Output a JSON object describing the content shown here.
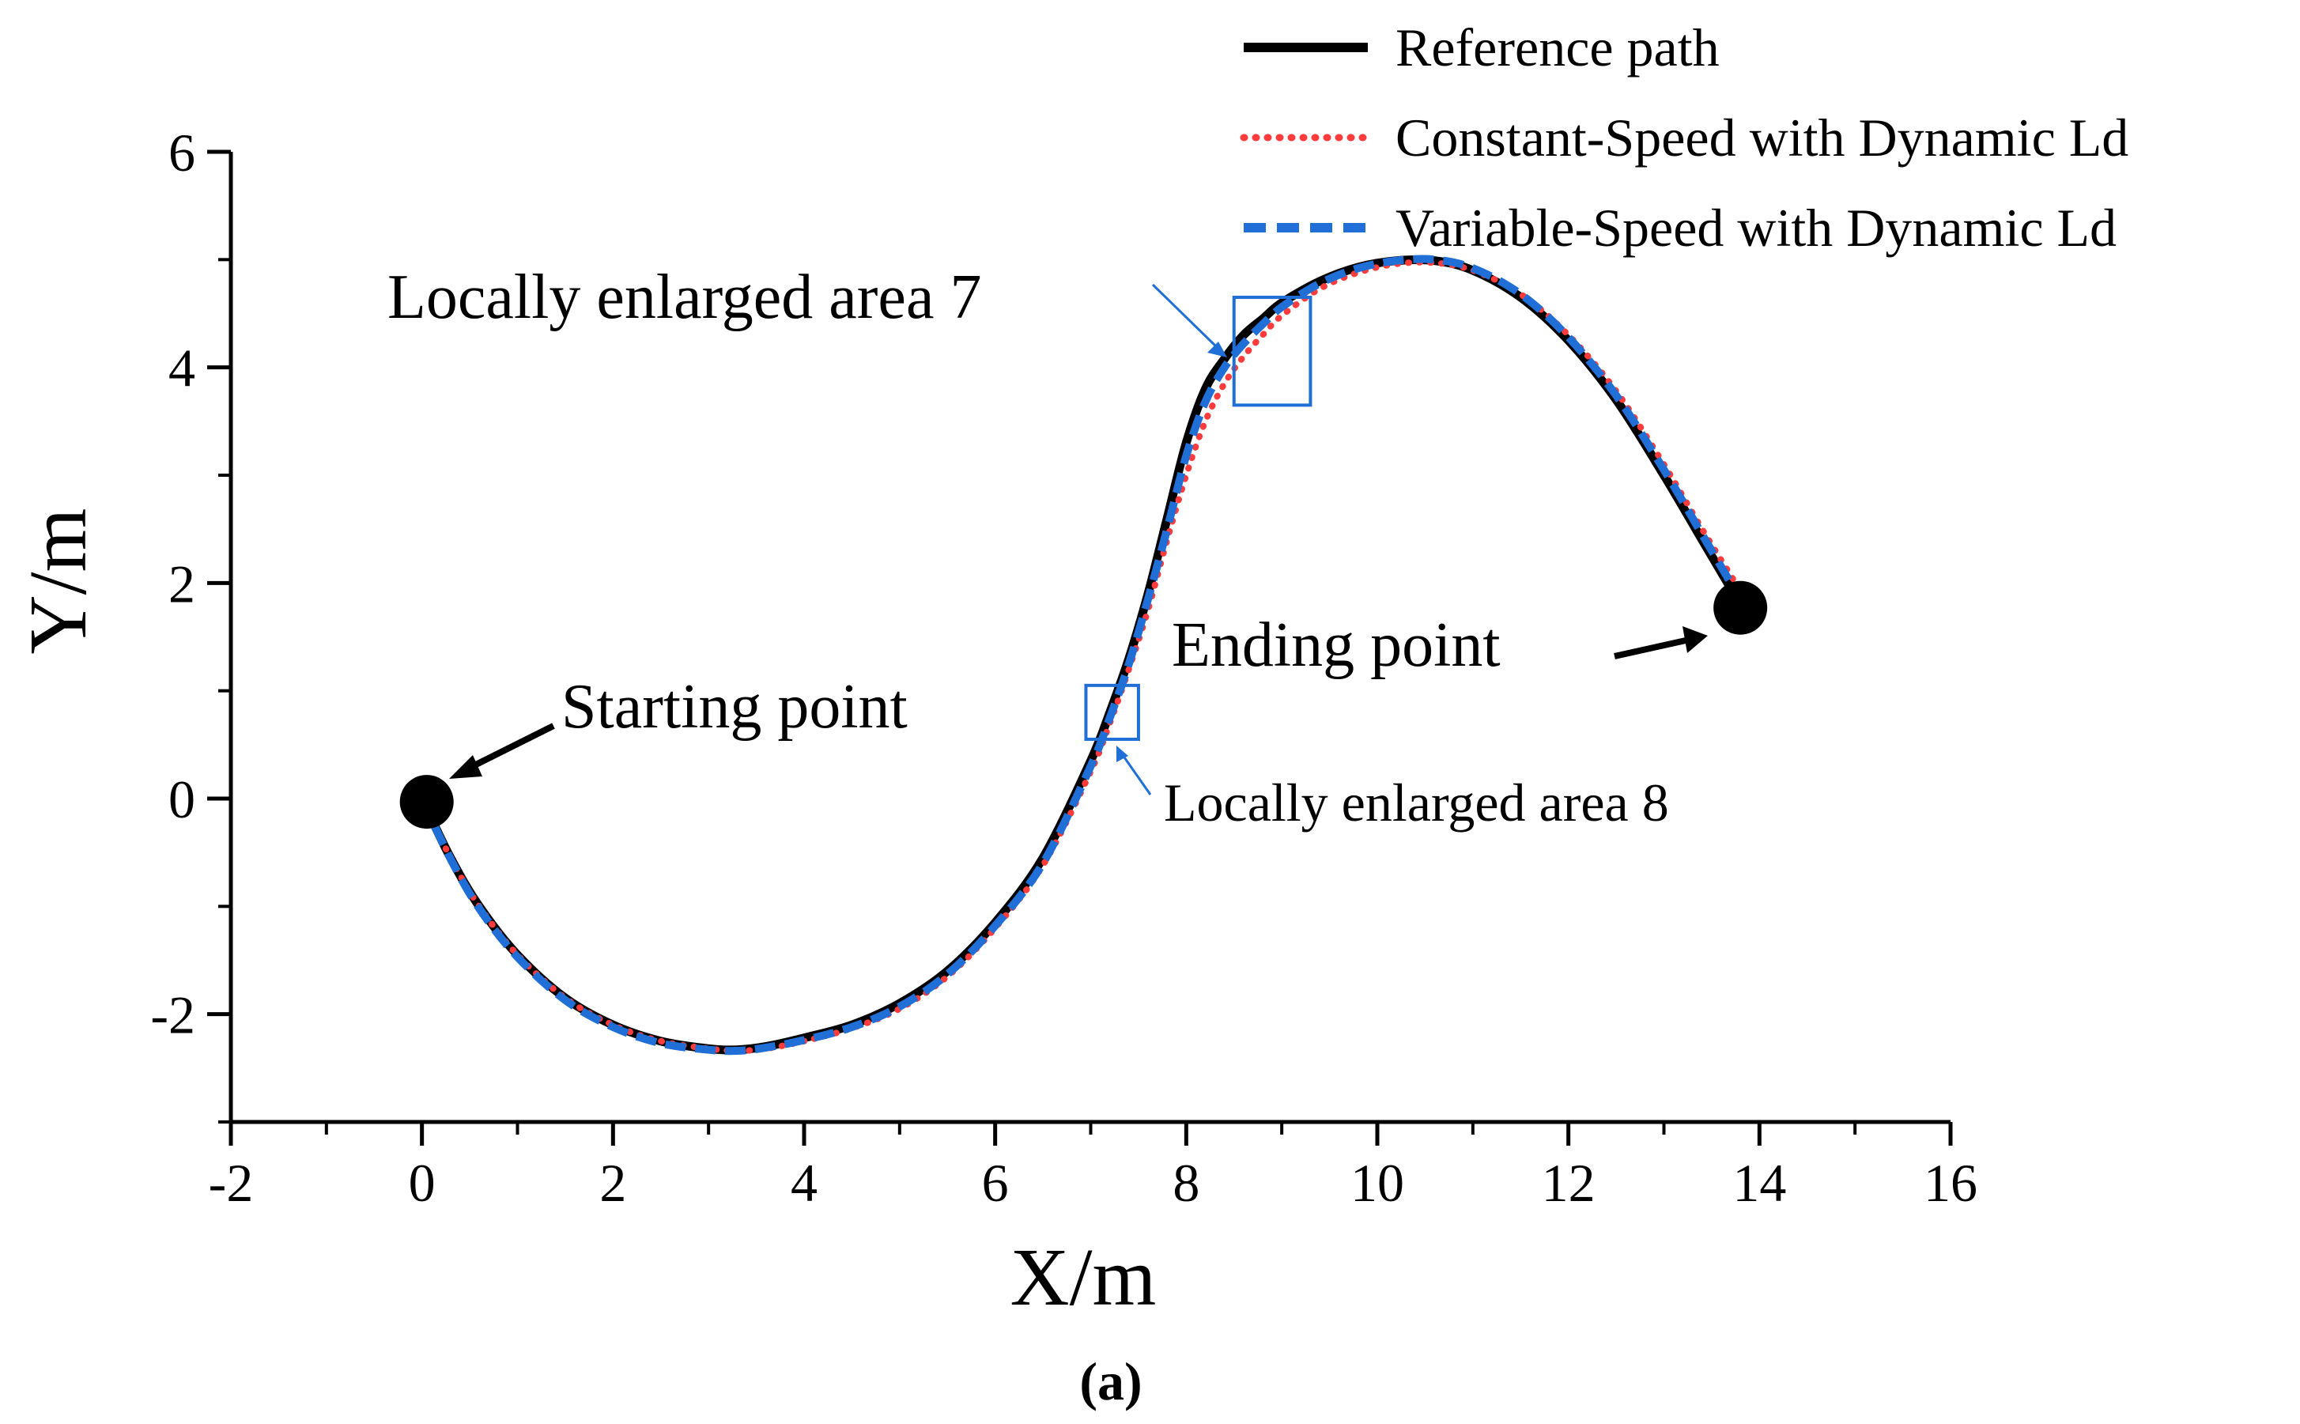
{
  "chart_data": {
    "type": "line",
    "xlabel": "X/m",
    "ylabel": "Y/m",
    "xlim": [
      -2,
      16
    ],
    "ylim": [
      -3,
      6
    ],
    "xticks": [
      -2,
      0,
      2,
      4,
      6,
      8,
      10,
      12,
      14,
      16
    ],
    "yticks": [
      -2,
      0,
      2,
      4,
      6
    ],
    "x_tick_labels": [
      "-2",
      "0",
      "2",
      "4",
      "6",
      "8",
      "10",
      "12",
      "14",
      "16"
    ],
    "y_tick_labels": [
      "-2",
      "0",
      "2",
      "4",
      "6"
    ],
    "grid": false,
    "legend_position": "top-right",
    "caption": "(a)",
    "colors": {
      "reference": "#000000",
      "constant": "#ff3b3b",
      "variable": "#1f6fd6",
      "box": "#1f6fd6",
      "marker": "#000000"
    },
    "series": [
      {
        "name": "Reference path",
        "style": "solid",
        "x": [
          0,
          0.3,
          0.6,
          1.0,
          1.5,
          2.0,
          2.5,
          3.0,
          3.3,
          3.6,
          4.0,
          4.5,
          5.0,
          5.5,
          6.0,
          6.5,
          7.0,
          7.2,
          7.4,
          7.6,
          7.8,
          8.0,
          8.2,
          8.4,
          8.6,
          8.8,
          9.0,
          9.4,
          9.8,
          10.2,
          10.6,
          11.0,
          11.5,
          12.0,
          12.5,
          13.0,
          13.4,
          13.8
        ],
        "y": [
          0,
          -0.55,
          -1.0,
          -1.45,
          -1.85,
          -2.1,
          -2.25,
          -2.32,
          -2.33,
          -2.3,
          -2.22,
          -2.1,
          -1.9,
          -1.6,
          -1.15,
          -0.55,
          0.35,
          0.8,
          1.3,
          1.9,
          2.6,
          3.3,
          3.8,
          4.08,
          4.3,
          4.45,
          4.6,
          4.8,
          4.93,
          4.99,
          4.99,
          4.9,
          4.65,
          4.25,
          3.7,
          3.0,
          2.4,
          1.8
        ]
      },
      {
        "name": "Constant-Speed with Dynamic Ld",
        "style": "dotted",
        "x": [
          0,
          0.3,
          0.6,
          1.0,
          1.5,
          2.0,
          2.5,
          3.0,
          3.3,
          3.6,
          4.0,
          4.5,
          5.0,
          5.5,
          6.0,
          6.5,
          7.0,
          7.2,
          7.4,
          7.6,
          7.8,
          8.0,
          8.2,
          8.4,
          8.6,
          8.8,
          9.0,
          9.4,
          9.8,
          10.2,
          10.6,
          11.0,
          11.5,
          12.0,
          12.5,
          13.0,
          13.4,
          13.75
        ],
        "y": [
          0,
          -0.55,
          -1.0,
          -1.45,
          -1.85,
          -2.1,
          -2.25,
          -2.32,
          -2.34,
          -2.32,
          -2.25,
          -2.13,
          -1.95,
          -1.65,
          -1.2,
          -0.62,
          0.25,
          0.7,
          1.2,
          1.75,
          2.4,
          3.0,
          3.5,
          3.85,
          4.1,
          4.3,
          4.48,
          4.73,
          4.88,
          4.96,
          4.97,
          4.9,
          4.68,
          4.3,
          3.78,
          3.1,
          2.5,
          2.0
        ]
      },
      {
        "name": "Variable-Speed with Dynamic Ld",
        "style": "dashed",
        "x": [
          0,
          0.3,
          0.6,
          1.0,
          1.5,
          2.0,
          2.5,
          3.0,
          3.3,
          3.6,
          4.0,
          4.5,
          5.0,
          5.5,
          6.0,
          6.5,
          7.0,
          7.2,
          7.4,
          7.6,
          7.8,
          8.0,
          8.2,
          8.4,
          8.6,
          8.8,
          9.0,
          9.4,
          9.8,
          10.2,
          10.6,
          11.0,
          11.5,
          12.0,
          12.5,
          13.0,
          13.4,
          13.8
        ],
        "y": [
          0,
          -0.56,
          -1.02,
          -1.47,
          -1.87,
          -2.12,
          -2.27,
          -2.33,
          -2.34,
          -2.31,
          -2.24,
          -2.12,
          -1.93,
          -1.63,
          -1.18,
          -0.6,
          0.3,
          0.75,
          1.25,
          1.85,
          2.5,
          3.18,
          3.68,
          4.0,
          4.22,
          4.4,
          4.56,
          4.78,
          4.92,
          4.99,
          5.0,
          4.92,
          4.68,
          4.28,
          3.74,
          3.05,
          2.45,
          1.85
        ]
      }
    ],
    "markers": [
      {
        "name": "start-marker",
        "x": 0.05,
        "y": -0.03
      },
      {
        "name": "end-marker",
        "x": 13.8,
        "y": 1.77
      }
    ],
    "zoom_boxes": [
      {
        "name": "enlarged-area-7-box",
        "x0": 8.5,
        "x1": 9.3,
        "y0": 3.65,
        "y1": 4.65
      },
      {
        "name": "enlarged-area-8-box",
        "x0": 6.95,
        "x1": 7.5,
        "y0": 0.55,
        "y1": 1.05
      }
    ],
    "annotations": {
      "starting_point": "Starting point",
      "ending_point": "Ending point",
      "enlarged_7": "Locally enlarged area 7",
      "enlarged_8": "Locally enlarged area 8"
    }
  }
}
